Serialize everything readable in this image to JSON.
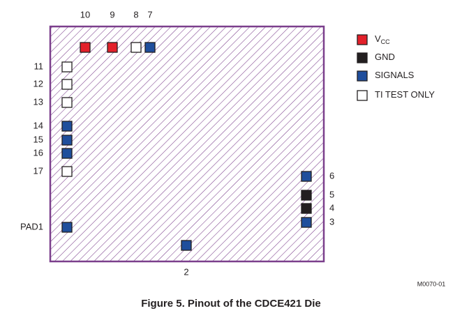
{
  "pads": [
    {
      "label": "10",
      "color": "#e3202a"
    },
    {
      "label": "9",
      "color": "#e3202a"
    },
    {
      "label": "8",
      "color": "#ffffff"
    },
    {
      "label": "7",
      "color": "#1f4e9c"
    },
    {
      "label": "11",
      "color": "#ffffff"
    },
    {
      "label": "12",
      "color": "#ffffff"
    },
    {
      "label": "13",
      "color": "#ffffff"
    },
    {
      "label": "14",
      "color": "#1f4e9c"
    },
    {
      "label": "15",
      "color": "#1f4e9c"
    },
    {
      "label": "16",
      "color": "#1f4e9c"
    },
    {
      "label": "17",
      "color": "#ffffff"
    },
    {
      "label": "PAD1",
      "color": "#1f4e9c"
    },
    {
      "label": "2",
      "color": "#1f4e9c"
    },
    {
      "label": "6",
      "color": "#1f4e9c"
    },
    {
      "label": "5",
      "color": "#231f20"
    },
    {
      "label": "4",
      "color": "#231f20"
    },
    {
      "label": "3",
      "color": "#1f4e9c"
    }
  ],
  "legend": [
    {
      "label": "V",
      "subscript": "CC",
      "color": "#e3202a"
    },
    {
      "label": "GND",
      "color": "#231f20"
    },
    {
      "label": "SIGNALS",
      "color": "#1f4e9c"
    },
    {
      "label": "TI TEST ONLY",
      "color": "#ffffff"
    }
  ],
  "figure_code": "M0070-01",
  "caption": "Figure 5. Pinout of the CDCE421 Die"
}
